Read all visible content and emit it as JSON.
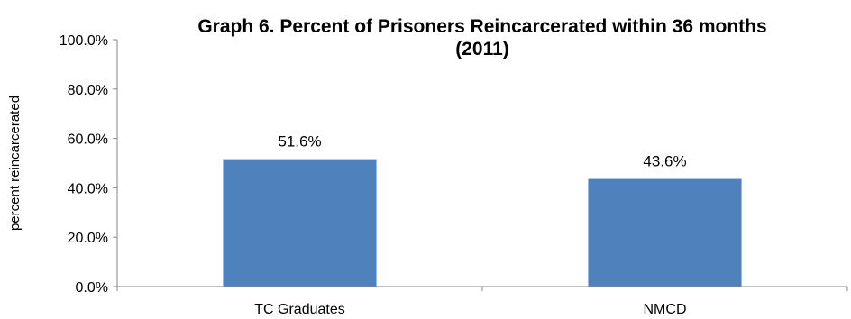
{
  "chart_data": {
    "type": "bar",
    "title_lines": [
      "Graph 6. Percent of Prisoners Reincarcerated within 36 months",
      "(2011)"
    ],
    "categories": [
      "TC Graduates",
      "NMCD"
    ],
    "values": [
      51.6,
      43.6
    ],
    "data_labels": [
      "51.6%",
      "43.6%"
    ],
    "ylabel": "percent reincarcerated",
    "xlabel": "",
    "ylim": [
      0,
      100
    ],
    "yticks": [
      0,
      20,
      40,
      60,
      80,
      100
    ],
    "ytick_labels": [
      "0.0%",
      "20.0%",
      "40.0%",
      "60.0%",
      "80.0%",
      "100.0%"
    ],
    "bar_color": "#4F81BD",
    "grid": false,
    "legend": "none"
  }
}
